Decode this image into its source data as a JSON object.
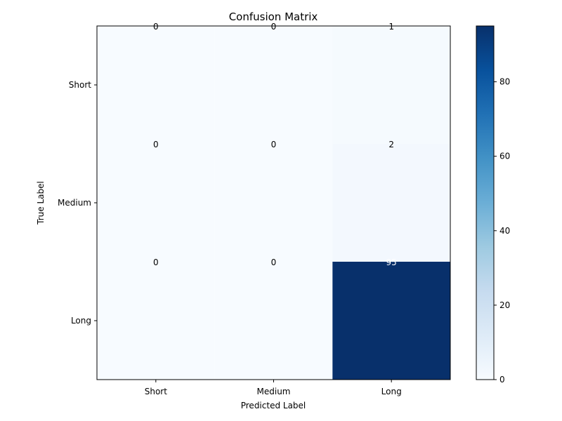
{
  "chart_data": {
    "type": "heatmap",
    "title": "Confusion Matrix",
    "xlabel": "Predicted Label",
    "ylabel": "True Label",
    "x_categories": [
      "Short",
      "Medium",
      "Long"
    ],
    "y_categories": [
      "Short",
      "Medium",
      "Long"
    ],
    "values": [
      [
        0,
        0,
        1
      ],
      [
        0,
        0,
        2
      ],
      [
        0,
        0,
        95
      ]
    ],
    "colormap": "Blues",
    "color_range": [
      0,
      95
    ],
    "colorbar_ticks": [
      0,
      20,
      40,
      60,
      80
    ],
    "colors": {
      "low": "#f7fbff",
      "high": "#08306b",
      "text_dark": "#000000",
      "text_light": "#ffffff"
    }
  }
}
